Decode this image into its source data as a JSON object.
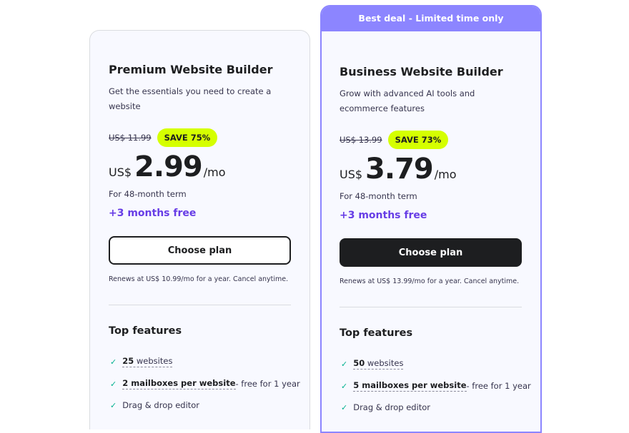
{
  "plans": [
    {
      "title": "Premium Website Builder",
      "description": "Get the essentials you need to create a website",
      "old_price": "US$ 11.99",
      "save_badge": "SAVE 75%",
      "currency": "US$",
      "price": "2.99",
      "period": "/mo",
      "term": "For 48-month term",
      "bonus": "+3 months free",
      "button": "Choose plan",
      "renews": "Renews at US$ 10.99/mo for a year. Cancel anytime.",
      "features_title": "Top features",
      "features": [
        {
          "bold": "25",
          "text": " websites",
          "extra": ""
        },
        {
          "bold": "2 mailboxes per website",
          "text": "",
          "extra": " - free for 1 year"
        },
        {
          "bold": "",
          "text": "Drag & drop editor",
          "extra": ""
        }
      ]
    },
    {
      "banner": "Best deal - Limited time only",
      "title": "Business Website Builder",
      "description": "Grow with advanced AI tools and ecommerce features",
      "old_price": "US$ 13.99",
      "save_badge": "SAVE 73%",
      "currency": "US$",
      "price": "3.79",
      "period": "/mo",
      "term": "For 48-month term",
      "bonus": "+3 months free",
      "button": "Choose plan",
      "renews": "Renews at US$ 13.99/mo for a year. Cancel anytime.",
      "features_title": "Top features",
      "features": [
        {
          "bold": "50",
          "text": " websites",
          "extra": ""
        },
        {
          "bold": "5 mailboxes per website",
          "text": "",
          "extra": " - free for 1 year"
        },
        {
          "bold": "",
          "text": "Drag & drop editor",
          "extra": ""
        }
      ]
    }
  ],
  "colors": {
    "accent": "#673de6",
    "banner": "#8c85ff",
    "badge": "#d5ff00",
    "check": "#00b090"
  }
}
